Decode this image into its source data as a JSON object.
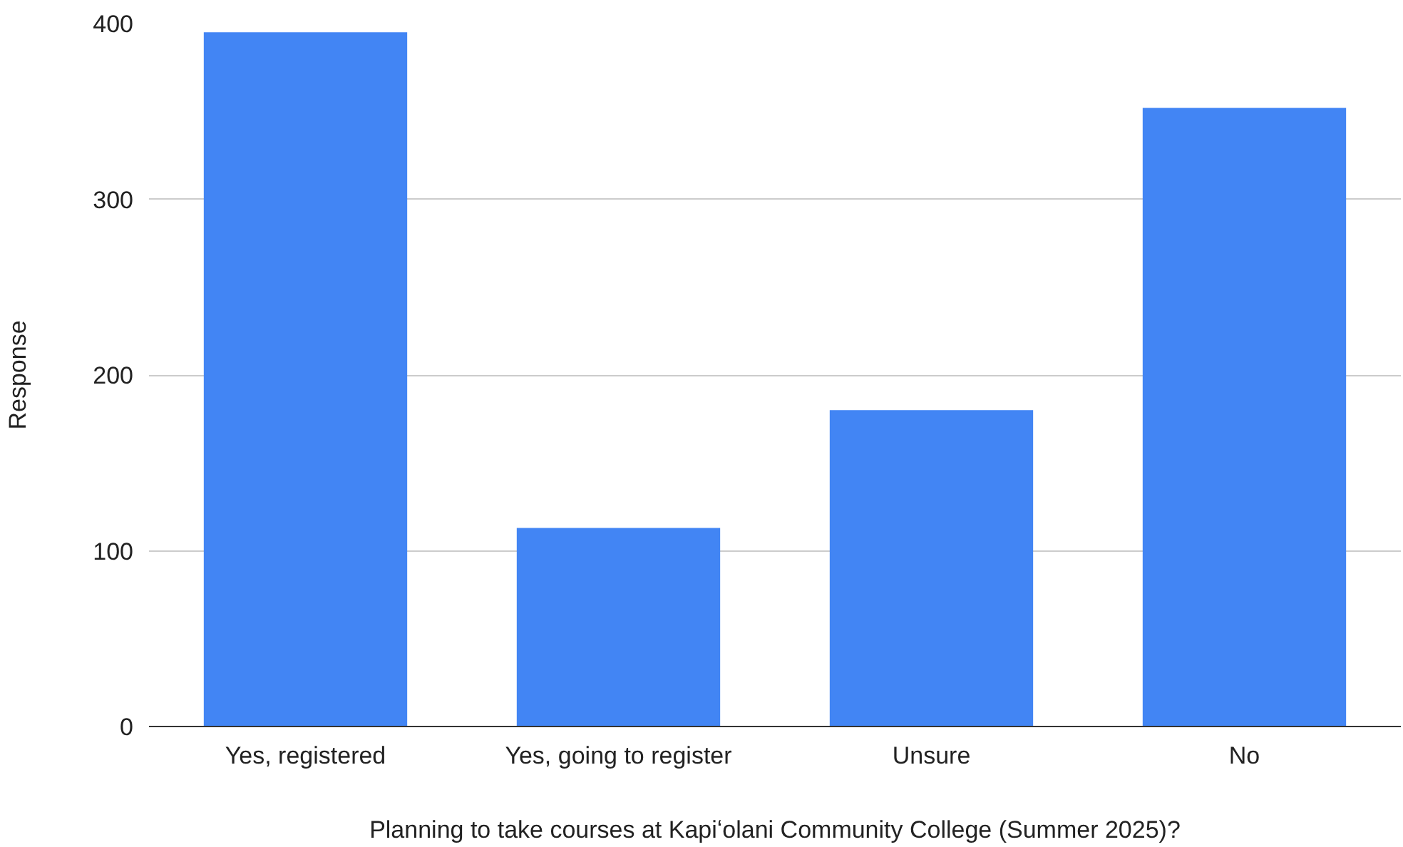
{
  "chart_data": {
    "type": "bar",
    "xlabel": "Planning to take courses at Kapiʻolani Community College (Summer 2025)?",
    "ylabel": "Response",
    "categories": [
      "Yes, registered",
      "Yes, going to register",
      "Unsure",
      "No"
    ],
    "values": [
      395,
      113,
      180,
      352
    ],
    "color": "#4285f4",
    "ylim": [
      0,
      400
    ],
    "yticks": [
      0,
      100,
      200,
      300,
      400
    ],
    "grid": "y"
  }
}
